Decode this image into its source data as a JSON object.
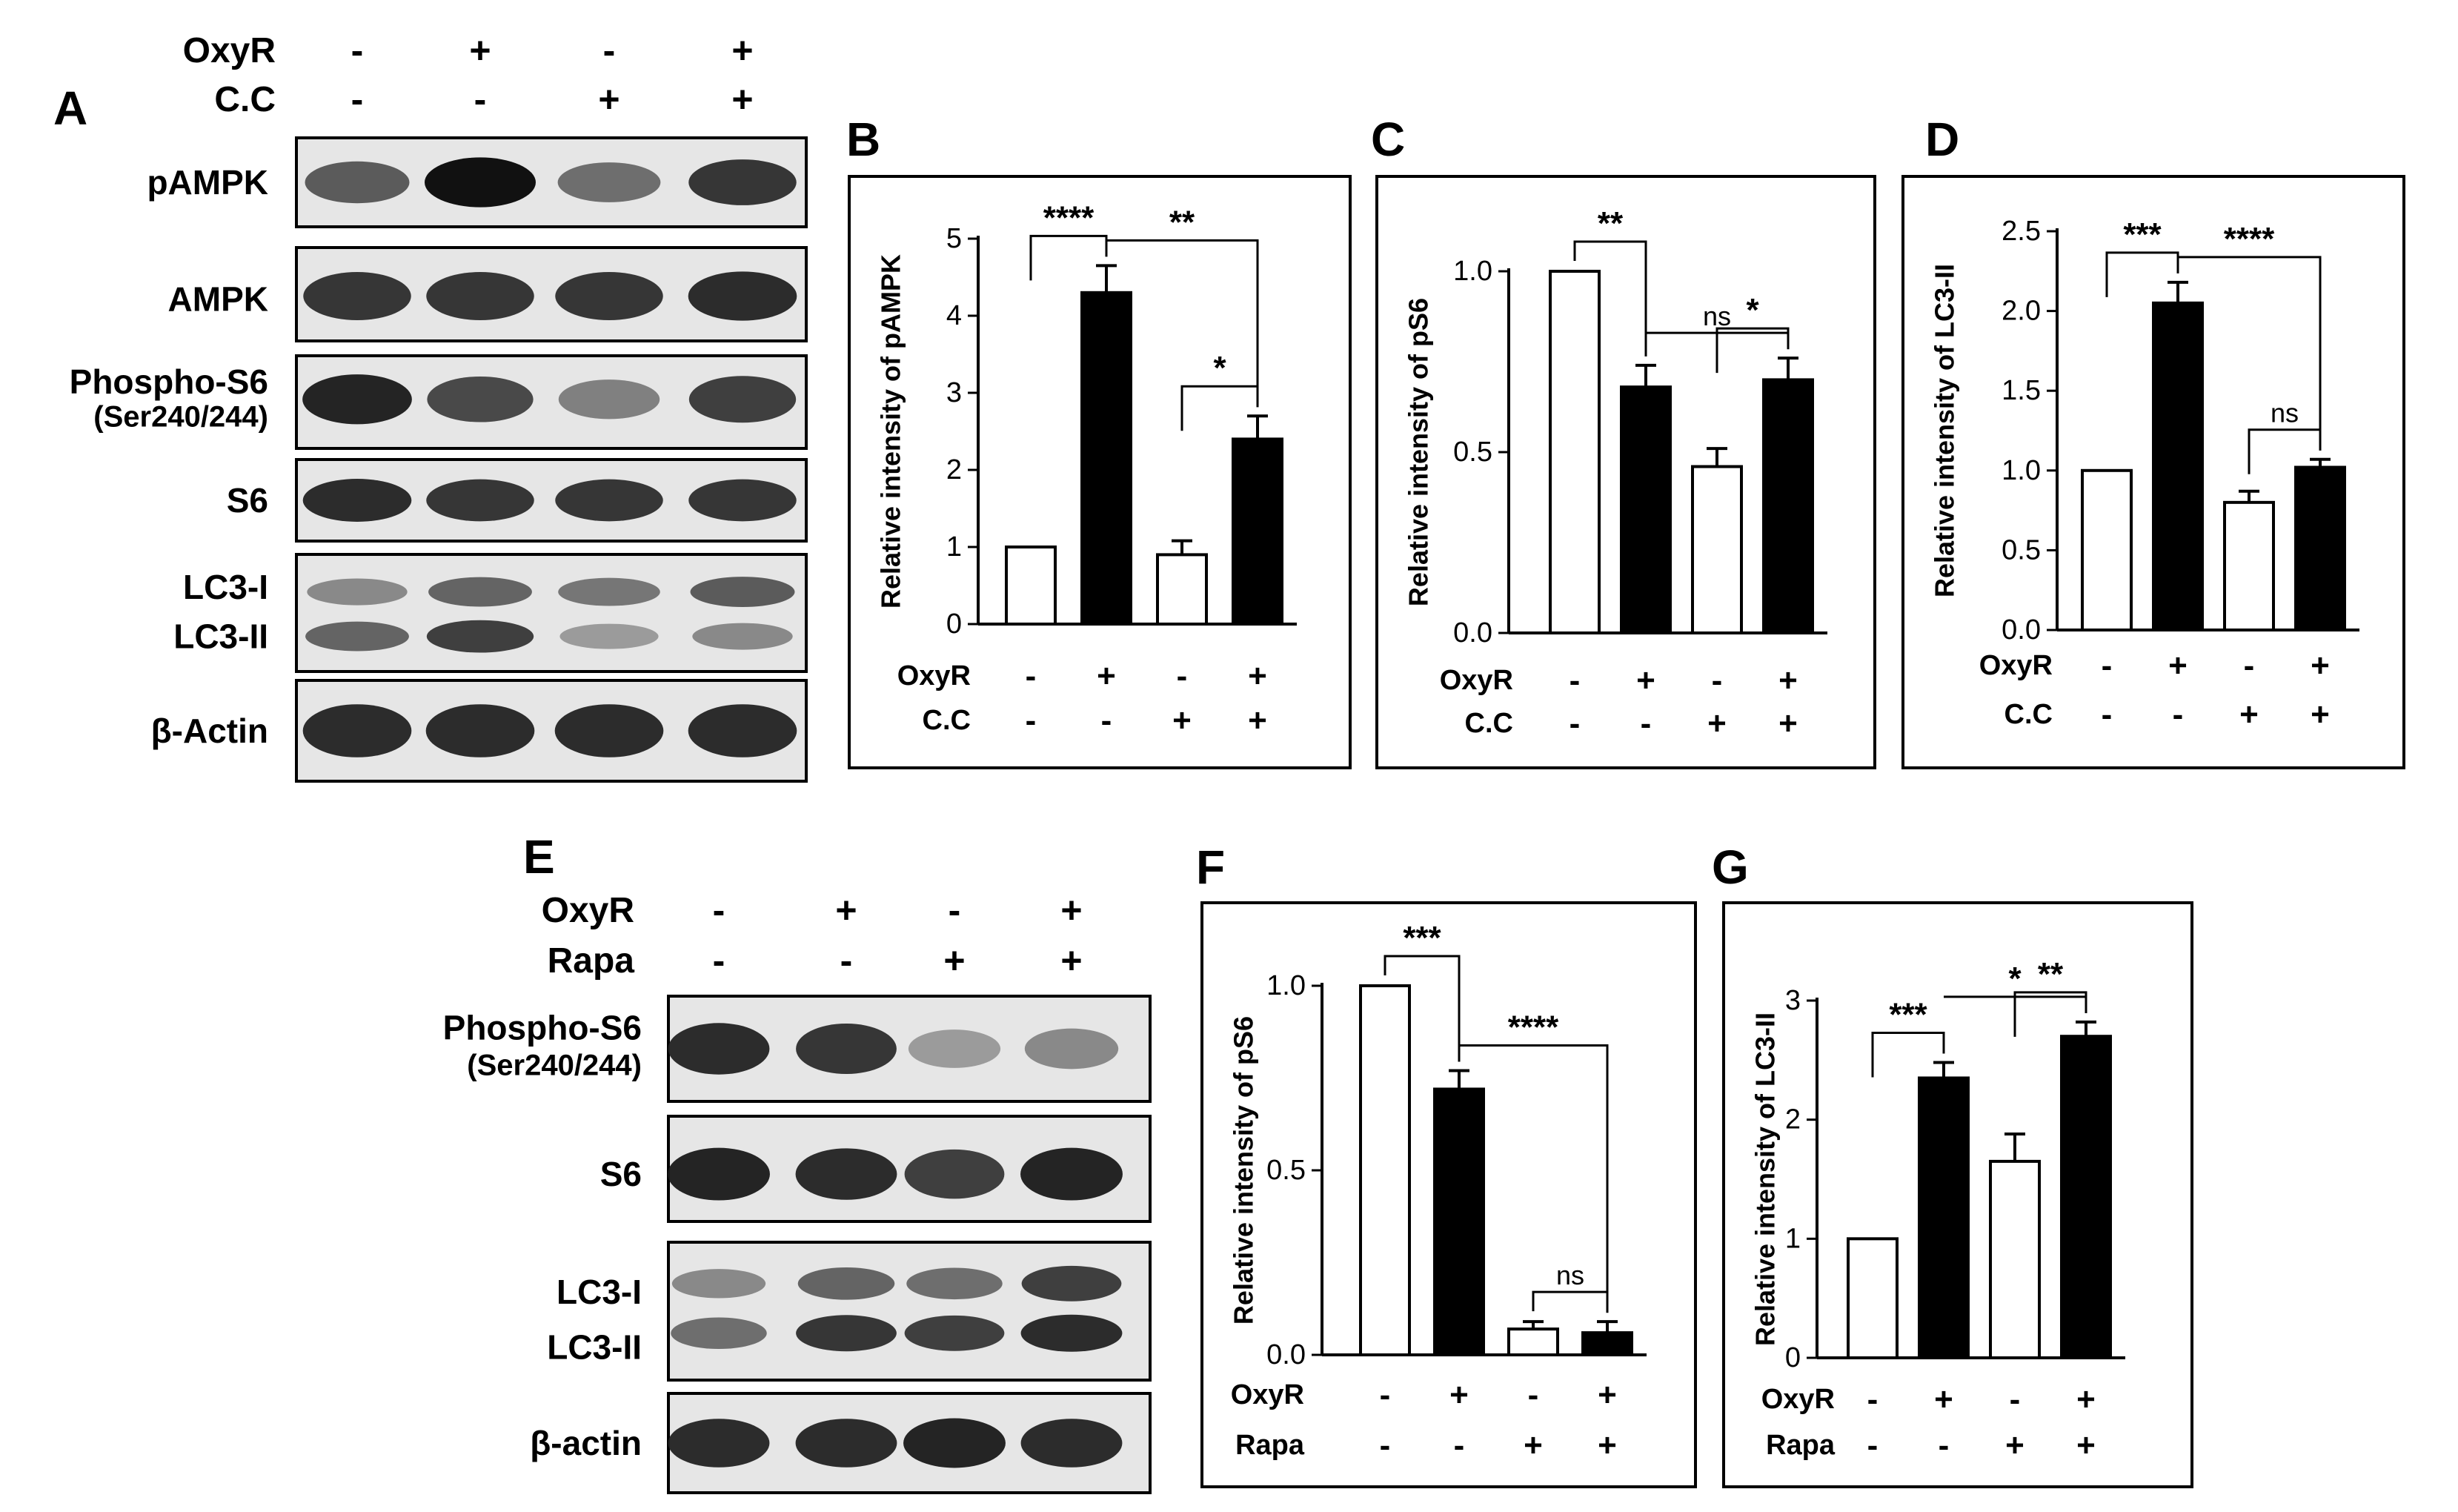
{
  "blot_panels": [
    {
      "letter": "A",
      "conditions": [
        {
          "label": "OxyR",
          "signs": [
            "-",
            "+",
            "-",
            "+"
          ]
        },
        {
          "label": "C.C",
          "signs": [
            "-",
            "-",
            "+",
            "+"
          ]
        }
      ],
      "blots": [
        {
          "labels": [
            "pAMPK"
          ],
          "bands": [
            [
              0.6,
              1.0,
              0.5,
              0.8
            ]
          ]
        },
        {
          "labels": [
            "AMPK"
          ],
          "bands": [
            [
              0.8,
              0.8,
              0.8,
              0.85
            ]
          ]
        },
        {
          "labels": [
            "Phospho-S6",
            "(Ser240/244)"
          ],
          "bands": [
            [
              0.9,
              0.7,
              0.4,
              0.75
            ]
          ]
        },
        {
          "labels": [
            "S6"
          ],
          "bands": [
            [
              0.85,
              0.8,
              0.8,
              0.8
            ]
          ]
        },
        {
          "labels": [
            "LC3-I",
            "LC3-II"
          ],
          "bands": [
            [
              0.35,
              0.55,
              0.45,
              0.6
            ],
            [
              0.55,
              0.75,
              0.25,
              0.35
            ]
          ]
        },
        {
          "labels": [
            "β-Actin"
          ],
          "bands": [
            [
              0.85,
              0.85,
              0.85,
              0.85
            ]
          ]
        }
      ]
    },
    {
      "letter": "E",
      "conditions": [
        {
          "label": "OxyR",
          "signs": [
            "-",
            "+",
            "-",
            "+"
          ]
        },
        {
          "label": "Rapa",
          "signs": [
            "-",
            "-",
            "+",
            "+"
          ]
        }
      ],
      "blots": [
        {
          "labels": [
            "Phospho-S6",
            "(Ser240/244)"
          ],
          "bands": [
            [
              0.85,
              0.8,
              0.25,
              0.35
            ]
          ]
        },
        {
          "labels": [
            "S6"
          ],
          "bands": [
            [
              0.9,
              0.85,
              0.75,
              0.9
            ]
          ]
        },
        {
          "labels": [
            "LC3-I",
            "LC3-II"
          ],
          "bands": [
            [
              0.35,
              0.55,
              0.5,
              0.75
            ],
            [
              0.5,
              0.8,
              0.75,
              0.85
            ]
          ]
        },
        {
          "labels": [
            "β-actin"
          ],
          "bands": [
            [
              0.85,
              0.85,
              0.9,
              0.85
            ]
          ]
        }
      ]
    }
  ],
  "chart_data": [
    {
      "letter": "B",
      "type": "bar",
      "ylabel": "Relative intensity of pAMPK",
      "ylim": [
        0,
        5
      ],
      "yticks": [
        0,
        1,
        2,
        3,
        4,
        5
      ],
      "values": [
        1.0,
        4.3,
        0.9,
        2.4
      ],
      "errors": [
        0,
        0.35,
        0.18,
        0.3
      ],
      "fills": [
        "white",
        "black",
        "white",
        "black"
      ],
      "conditions": [
        {
          "label": "OxyR",
          "signs": [
            "-",
            "+",
            "-",
            "+"
          ]
        },
        {
          "label": "C.C",
          "signs": [
            "-",
            "-",
            "+",
            "+"
          ]
        }
      ],
      "brackets": [
        {
          "a": 0,
          "b": 1,
          "label": "****"
        },
        {
          "a": 1,
          "b": 3,
          "label": "**"
        },
        {
          "a": 2,
          "b": 3,
          "label": "*"
        }
      ]
    },
    {
      "letter": "C",
      "type": "bar",
      "ylabel": "Relative intensity of pS6",
      "ylim": [
        0,
        1
      ],
      "yticks": [
        "0.0",
        "0.5",
        "1.0"
      ],
      "values": [
        1.0,
        0.68,
        0.46,
        0.7
      ],
      "errors": [
        0,
        0.06,
        0.05,
        0.06
      ],
      "fills": [
        "white",
        "black",
        "white",
        "black"
      ],
      "conditions": [
        {
          "label": "OxyR",
          "signs": [
            "-",
            "+",
            "-",
            "+"
          ]
        },
        {
          "label": "C.C",
          "signs": [
            "-",
            "-",
            "+",
            "+"
          ]
        }
      ],
      "brackets": [
        {
          "a": 0,
          "b": 1,
          "label": "**"
        },
        {
          "a": 1,
          "b": 3,
          "label": "ns"
        },
        {
          "a": 2,
          "b": 3,
          "label": "*"
        }
      ]
    },
    {
      "letter": "D",
      "type": "bar",
      "ylabel": "Relative intensity of LC3-II",
      "ylim": [
        0,
        2.5
      ],
      "yticks": [
        "0.0",
        "0.5",
        "1.0",
        "1.5",
        "2.0",
        "2.5"
      ],
      "values": [
        1.0,
        2.05,
        0.8,
        1.02
      ],
      "errors": [
        0,
        0.13,
        0.07,
        0.05
      ],
      "fills": [
        "white",
        "black",
        "white",
        "black"
      ],
      "conditions": [
        {
          "label": "OxyR",
          "signs": [
            "-",
            "+",
            "-",
            "+"
          ]
        },
        {
          "label": "C.C",
          "signs": [
            "-",
            "-",
            "+",
            "+"
          ]
        }
      ],
      "brackets": [
        {
          "a": 0,
          "b": 1,
          "label": "***"
        },
        {
          "a": 1,
          "b": 3,
          "label": "****"
        },
        {
          "a": 2,
          "b": 3,
          "label": "ns"
        }
      ]
    },
    {
      "letter": "F",
      "type": "bar",
      "ylabel": "Relative intensity of pS6",
      "ylim": [
        0,
        1
      ],
      "yticks": [
        "0.0",
        "0.5",
        "1.0"
      ],
      "values": [
        1.0,
        0.72,
        0.07,
        0.06
      ],
      "errors": [
        0,
        0.05,
        0.02,
        0.03
      ],
      "fills": [
        "white",
        "black",
        "white",
        "black"
      ],
      "conditions": [
        {
          "label": "OxyR",
          "signs": [
            "-",
            "+",
            "-",
            "+"
          ]
        },
        {
          "label": "Rapa",
          "signs": [
            "-",
            "-",
            "+",
            "+"
          ]
        }
      ],
      "brackets": [
        {
          "a": 0,
          "b": 1,
          "label": "***"
        },
        {
          "a": 1,
          "b": 3,
          "label": "****"
        },
        {
          "a": 2,
          "b": 3,
          "label": "ns"
        }
      ]
    },
    {
      "letter": "G",
      "type": "bar",
      "ylabel": "Relative intensity of LC3-II",
      "ylim": [
        0,
        3
      ],
      "yticks": [
        0,
        1,
        2,
        3
      ],
      "values": [
        1.0,
        2.35,
        1.65,
        2.7
      ],
      "errors": [
        0,
        0.13,
        0.23,
        0.12
      ],
      "fills": [
        "white",
        "black",
        "white",
        "black"
      ],
      "conditions": [
        {
          "label": "OxyR",
          "signs": [
            "-",
            "+",
            "-",
            "+"
          ]
        },
        {
          "label": "Rapa",
          "signs": [
            "-",
            "-",
            "+",
            "+"
          ]
        }
      ],
      "brackets": [
        {
          "a": 0,
          "b": 1,
          "label": "***"
        },
        {
          "a": 1,
          "b": 3,
          "label": "*"
        },
        {
          "a": 2,
          "b": 3,
          "label": "**"
        }
      ]
    }
  ]
}
